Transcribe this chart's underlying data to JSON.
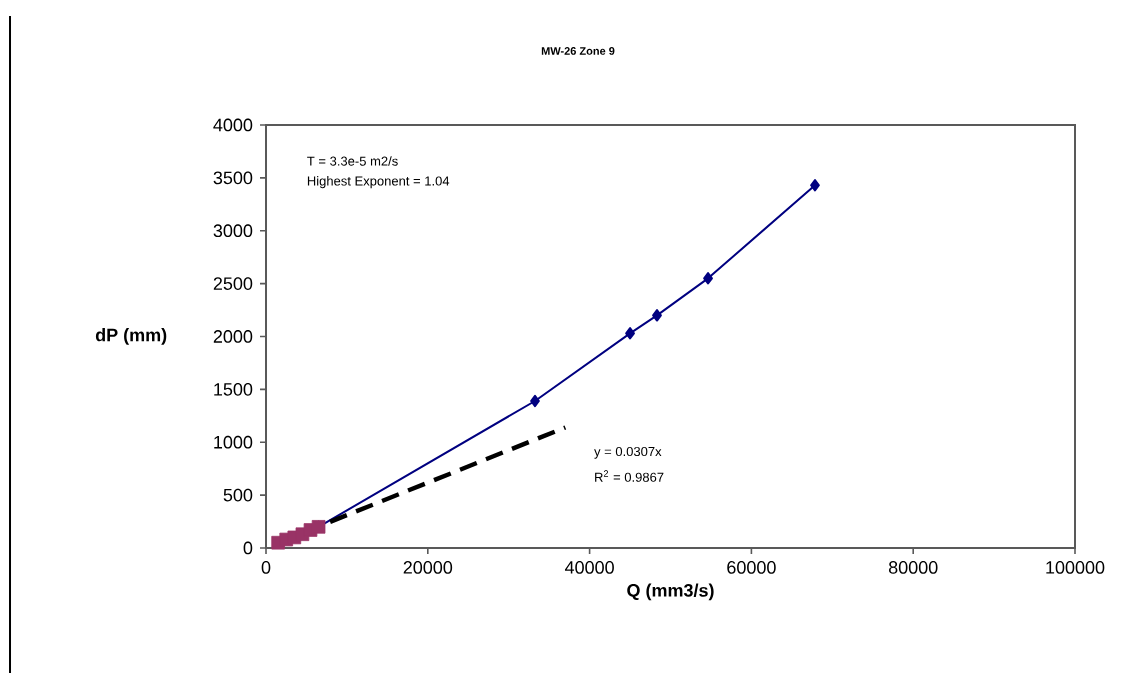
{
  "chart_data": {
    "type": "scatter",
    "title": "MW-26 Zone 9",
    "xlabel": "Q (mm3/s)",
    "ylabel": "dP (mm)",
    "xlim": [
      0,
      100000
    ],
    "xticks": [
      0,
      20000,
      40000,
      60000,
      80000,
      100000
    ],
    "ylim": [
      0,
      4000
    ],
    "yticks": [
      0,
      500,
      1000,
      1500,
      2000,
      2500,
      3000,
      3500,
      4000
    ],
    "grid": false,
    "series": [
      {
        "type": "line",
        "color": "#000080",
        "marker": "diamond",
        "line_style": "solid",
        "x": [
          6500,
          33250,
          45000,
          48330,
          54640,
          67860
        ],
        "values": [
          200,
          1390,
          2030,
          2200,
          2550,
          3430
        ]
      },
      {
        "color": "#993366",
        "marker": "square",
        "x": [
          1500,
          2500,
          3500,
          4500,
          5500,
          6500
        ],
        "values": [
          50,
          80,
          100,
          130,
          170,
          200
        ]
      },
      {
        "type": "line",
        "color": "#000000",
        "marker": "none",
        "line_style": "dashed",
        "x": [
          1500,
          37000
        ],
        "values": [
          50,
          1140
        ]
      }
    ],
    "annotations": [
      "T = 3.3e-5 m2/s",
      "Highest Exponent = 1.04",
      "y = 0.0307x",
      "R$^{2}$ = 0.9867"
    ]
  }
}
